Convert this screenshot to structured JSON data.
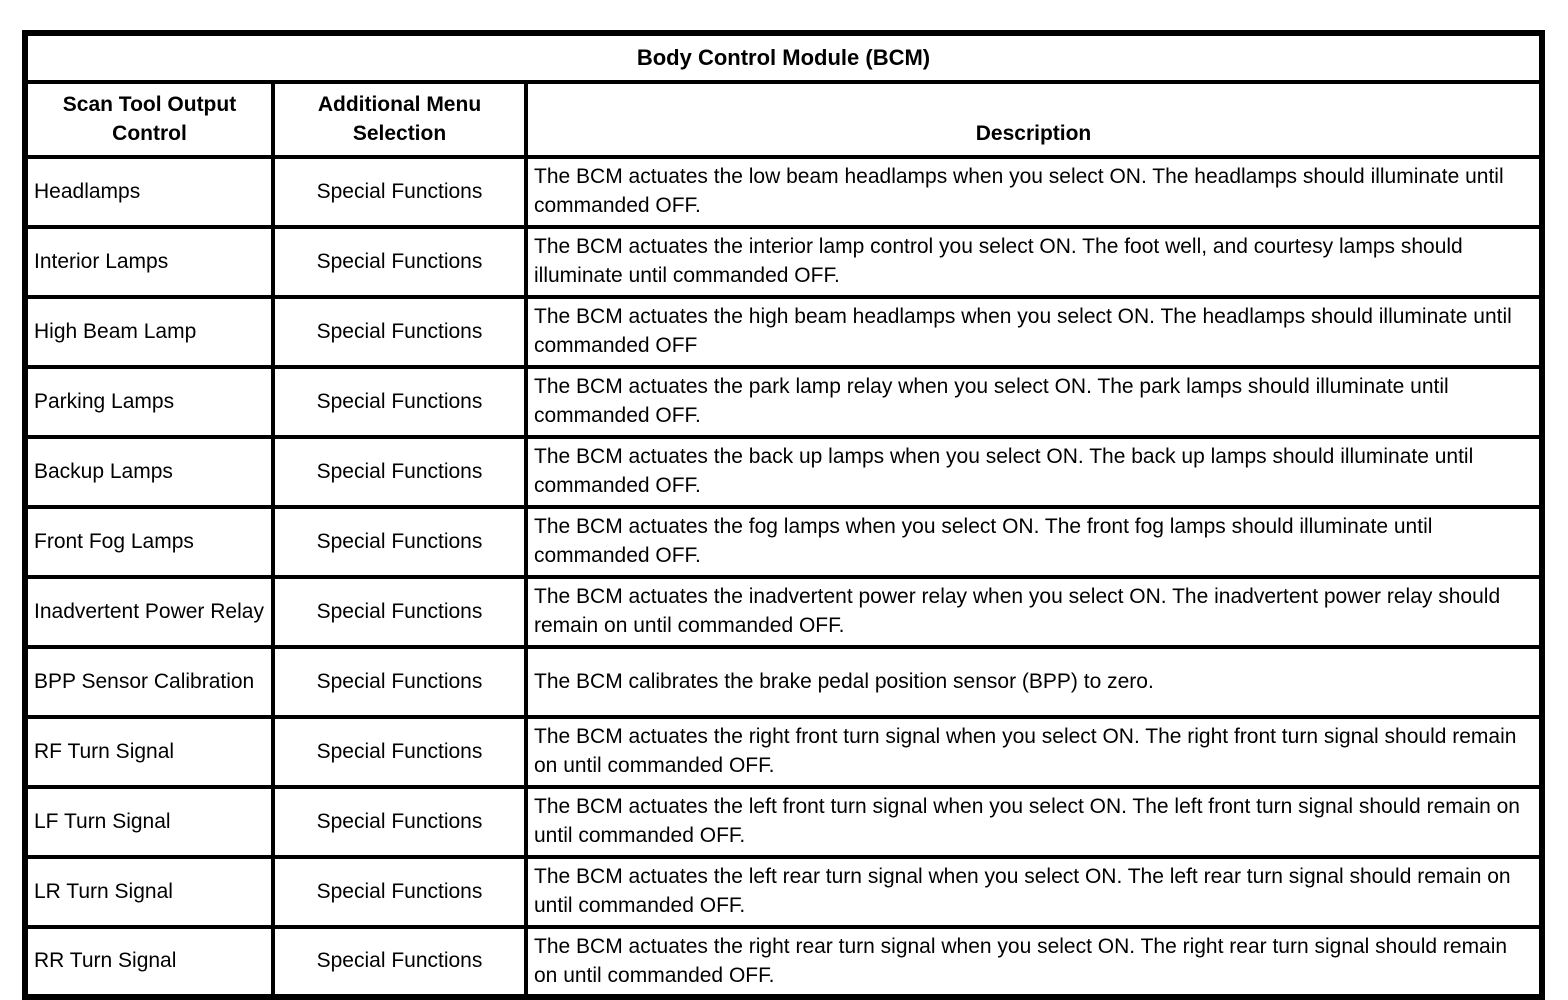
{
  "table": {
    "title": "Body Control Module (BCM)",
    "columns": [
      "Scan Tool Output Control",
      "Additional Menu Selection",
      "Description"
    ],
    "rows": [
      {
        "control": "Headlamps",
        "menu": "Special Functions",
        "description": "The BCM actuates the low beam headlamps when you select ON. The headlamps should illuminate until commanded OFF."
      },
      {
        "control": "Interior Lamps",
        "menu": "Special Functions",
        "description": "The BCM actuates the interior lamp control you select ON. The foot well, and courtesy lamps should illuminate until commanded OFF."
      },
      {
        "control": "High Beam Lamp",
        "menu": "Special Functions",
        "description": "The BCM actuates the high beam headlamps when you select ON. The headlamps should illuminate until commanded OFF"
      },
      {
        "control": "Parking Lamps",
        "menu": "Special Functions",
        "description": "The BCM actuates the park lamp relay when you select ON. The park lamps should illuminate until commanded OFF."
      },
      {
        "control": "Backup Lamps",
        "menu": "Special Functions",
        "description": "The BCM actuates the back up lamps when you select ON. The back up lamps should illuminate until commanded OFF."
      },
      {
        "control": "Front Fog Lamps",
        "menu": "Special Functions",
        "description": "The BCM actuates the fog lamps when you select ON. The front fog lamps should illuminate until commanded OFF."
      },
      {
        "control": "Inadvertent Power Relay",
        "menu": "Special Functions",
        "description": "The BCM actuates the inadvertent power relay when you select ON. The inadvertent power relay should remain on until commanded OFF."
      },
      {
        "control": "BPP Sensor Calibration",
        "menu": "Special Functions",
        "description": "The BCM calibrates the brake pedal position sensor (BPP) to zero."
      },
      {
        "control": "RF Turn Signal",
        "menu": "Special Functions",
        "description": "The BCM actuates the right front turn signal when you select ON. The right front turn signal should remain on until commanded OFF."
      },
      {
        "control": "LF Turn Signal",
        "menu": "Special Functions",
        "description": "The BCM actuates the left front turn signal when you select ON. The left front turn signal should remain on until commanded OFF."
      },
      {
        "control": "LR Turn Signal",
        "menu": "Special Functions",
        "description": "The BCM actuates the left rear turn signal when you select ON. The left rear turn signal should remain on until commanded OFF."
      },
      {
        "control": "RR Turn Signal",
        "menu": "Special Functions",
        "description": "The BCM actuates the right rear turn signal when you select ON. The right rear turn signal should remain on until commanded OFF."
      }
    ],
    "colors": {
      "border": "#000000",
      "background": "#ffffff",
      "text": "#000000"
    }
  }
}
